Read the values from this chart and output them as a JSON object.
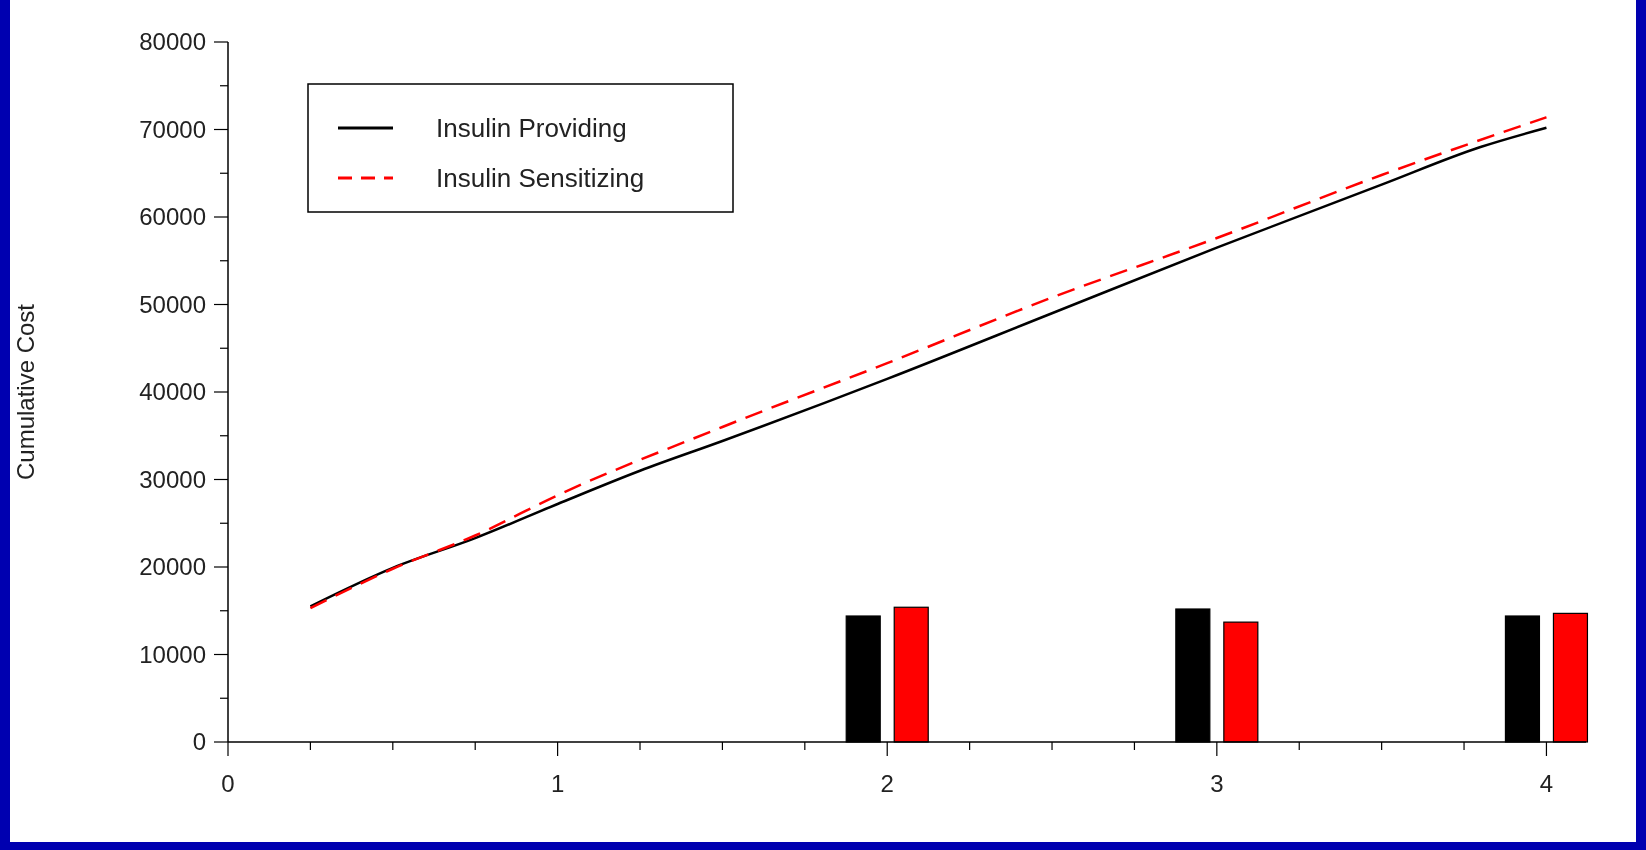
{
  "chart_data": {
    "type": "line",
    "ylabel": "Cumulative Cost",
    "xlim": [
      0,
      4.12
    ],
    "ylim": [
      0,
      80000
    ],
    "xticks": [
      0,
      {
        "value": 0.25,
        "label": null
      },
      {
        "value": 0.5,
        "label": null
      },
      {
        "value": 0.75,
        "label": null
      },
      1,
      {
        "value": 1.25,
        "label": null
      },
      {
        "value": 1.5,
        "label": null
      },
      {
        "value": 1.75,
        "label": null
      },
      2,
      {
        "value": 2.25,
        "label": null
      },
      {
        "value": 2.5,
        "label": null
      },
      {
        "value": 2.75,
        "label": null
      },
      3,
      {
        "value": 3.25,
        "label": null
      },
      {
        "value": 3.5,
        "label": null
      },
      {
        "value": 3.75,
        "label": null
      },
      4
    ],
    "yticks": [
      0,
      {
        "value": 5000,
        "label": null
      },
      10000,
      {
        "value": 15000,
        "label": null
      },
      20000,
      {
        "value": 25000,
        "label": null
      },
      30000,
      {
        "value": 35000,
        "label": null
      },
      40000,
      {
        "value": 45000,
        "label": null
      },
      50000,
      {
        "value": 55000,
        "label": null
      },
      60000,
      {
        "value": 65000,
        "label": null
      },
      70000,
      {
        "value": 75000,
        "label": null
      },
      80000
    ],
    "grid": false,
    "legend": "top left",
    "marker": "none",
    "series": [
      {
        "name": "Insulin Providing",
        "color": "#000000",
        "line_style": "solid",
        "x": [
          0.25,
          0.5,
          0.75,
          1,
          1.25,
          1.5,
          2,
          2.5,
          3,
          3.5,
          3.8,
          4
        ],
        "values": [
          15500,
          19900,
          23300,
          27200,
          31000,
          34400,
          41500,
          49000,
          56500,
          63700,
          68000,
          70200
        ]
      },
      {
        "name": "Insulin Sensitizing",
        "color": "#ff0000",
        "line_style": "dashed",
        "x": [
          0.25,
          0.5,
          0.75,
          1,
          1.5,
          2,
          2.5,
          3,
          3.5,
          4
        ],
        "values": [
          15300,
          19800,
          23600,
          28200,
          36000,
          43300,
          50800,
          57600,
          64800,
          71400
        ]
      },
      {
        "type": "bar",
        "color": "#000000",
        "x": [
          2,
          3,
          4
        ],
        "values": [
          14400,
          15200,
          14400
        ]
      },
      {
        "type": "bar",
        "color": "#ff0000",
        "x": [
          2,
          3,
          4
        ],
        "values": [
          15400,
          13700,
          14700
        ]
      }
    ]
  }
}
